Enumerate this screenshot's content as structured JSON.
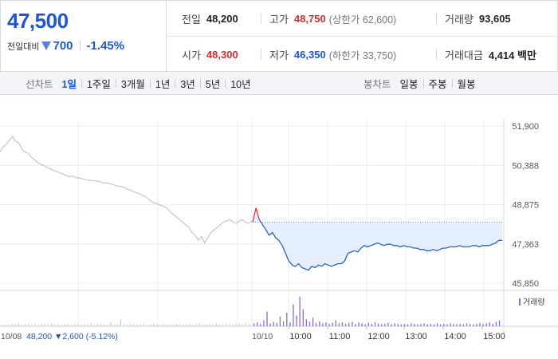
{
  "summary": {
    "current_price": "47,500",
    "change_label": "전일대비",
    "change_amount": "700",
    "change_rate": "-1.45%",
    "prev_close_label": "전일",
    "prev_close": "48,200",
    "open_label": "시가",
    "open": "48,300",
    "high_label": "고가",
    "high": "48,750",
    "upper_limit": "(상한가 62,600)",
    "low_label": "저가",
    "low": "46,350",
    "lower_limit": "(하한가 33,750)",
    "volume_label": "거래량",
    "volume": "93,605",
    "trade_value_label": "거래대금",
    "trade_value": "4,414 백만",
    "colors": {
      "up": "#d62b2b",
      "down": "#1a56d6"
    }
  },
  "tabs": {
    "line_title": "선차트",
    "line_items": [
      "1일",
      "1주일",
      "3개월",
      "1년",
      "3년",
      "5년",
      "10년"
    ],
    "line_active": "1일",
    "candle_title": "봉차트",
    "candle_items": [
      "일봉",
      "주봉",
      "월봉"
    ]
  },
  "chart_data": {
    "type": "line",
    "y_ticks": [
      "51,900",
      "50,388",
      "48,875",
      "47,363",
      "45,850"
    ],
    "ylim": [
      45850,
      51900
    ],
    "prev_day_x_label": "10/08",
    "prev_day_info": "48,200 ▼2,600 (-5.12%)",
    "today_x_label": "10/10",
    "time_ticks": [
      "10:00",
      "11:00",
      "12:00",
      "13:00",
      "14:00",
      "15:00"
    ],
    "reference_price": 48200,
    "grid": true,
    "legend": "거래량",
    "series": [
      {
        "values": [
          50900,
          51100,
          51200,
          51350,
          51500,
          51300,
          51250,
          51000,
          50900,
          50850,
          50700,
          50600,
          50500,
          50400,
          50380,
          50300,
          50250,
          50200,
          50150,
          50100,
          50050,
          50000,
          49950,
          49980,
          49920,
          49900,
          49880,
          49850,
          49820,
          49800,
          49790,
          49780,
          49750,
          49700,
          49720,
          49680,
          49650,
          49600,
          49580,
          49550,
          49500,
          49450,
          49400,
          49350,
          49300,
          49250,
          49200,
          49100,
          49000,
          48950,
          48900,
          48850,
          48800,
          48750,
          48600,
          48500,
          48400,
          48300,
          48200,
          48100,
          48000,
          47800,
          47700,
          47500,
          47650,
          47400,
          47600,
          47800,
          47900,
          48000,
          48100,
          48200,
          48250,
          48300,
          48200,
          48150,
          48250,
          48300,
          48200,
          48150,
          48250
        ]
      },
      {
        "values": [
          48200,
          48750,
          48300,
          48100,
          47900,
          47700,
          47800,
          47600,
          47500,
          47300,
          47000,
          46700,
          46550,
          46500,
          46600,
          46450,
          46400,
          46350,
          46500,
          46450,
          46550,
          46500,
          46600,
          46550,
          46500,
          46550,
          46600,
          46600,
          46700,
          47000,
          47050,
          47100,
          47050,
          47200,
          47300,
          47250,
          47300,
          47350,
          47400,
          47350,
          47300,
          47350,
          47350,
          47300,
          47300,
          47250,
          47300,
          47250,
          47250,
          47200,
          47200,
          47150,
          47150,
          47100,
          47100,
          47150,
          47100,
          47150,
          47200,
          47200,
          47250,
          47250,
          47250,
          47300,
          47250,
          47250,
          47250,
          47300,
          47300,
          47250,
          47300,
          47300,
          47300,
          47350,
          47400,
          47500,
          47500
        ]
      }
    ],
    "volume": {
      "prev_day": [
        3,
        4,
        3,
        5,
        4,
        6,
        3,
        4,
        5,
        3,
        4,
        3,
        5,
        4,
        4,
        6,
        3,
        4,
        3,
        5,
        4,
        3,
        4,
        5,
        3,
        4,
        4,
        6,
        3,
        4,
        5,
        4,
        3,
        8,
        3,
        5,
        14,
        4,
        3,
        5,
        4,
        3,
        4,
        5,
        3,
        4,
        6,
        4,
        3,
        5,
        4,
        3,
        4,
        5,
        4,
        3,
        4,
        5,
        3,
        4,
        6,
        3,
        4,
        5,
        4,
        6,
        3,
        4,
        6,
        4,
        3,
        5,
        6,
        4,
        7,
        5
      ],
      "today": [
        6,
        8,
        5,
        12,
        30,
        6,
        9,
        7,
        20,
        10,
        28,
        8,
        45,
        22,
        60,
        35,
        14,
        9,
        18,
        7,
        10,
        6,
        8,
        5,
        7,
        12,
        6,
        8,
        5,
        7,
        9,
        5,
        8,
        6,
        4,
        7,
        5,
        8,
        6,
        4,
        5,
        7,
        4,
        6,
        5,
        4,
        5,
        4,
        6,
        5,
        4,
        5,
        6,
        4,
        5,
        4,
        6,
        4,
        5,
        4,
        6,
        5,
        4,
        5,
        4,
        6,
        5,
        4,
        5,
        7,
        4,
        6,
        8,
        5,
        9,
        12
      ]
    }
  }
}
